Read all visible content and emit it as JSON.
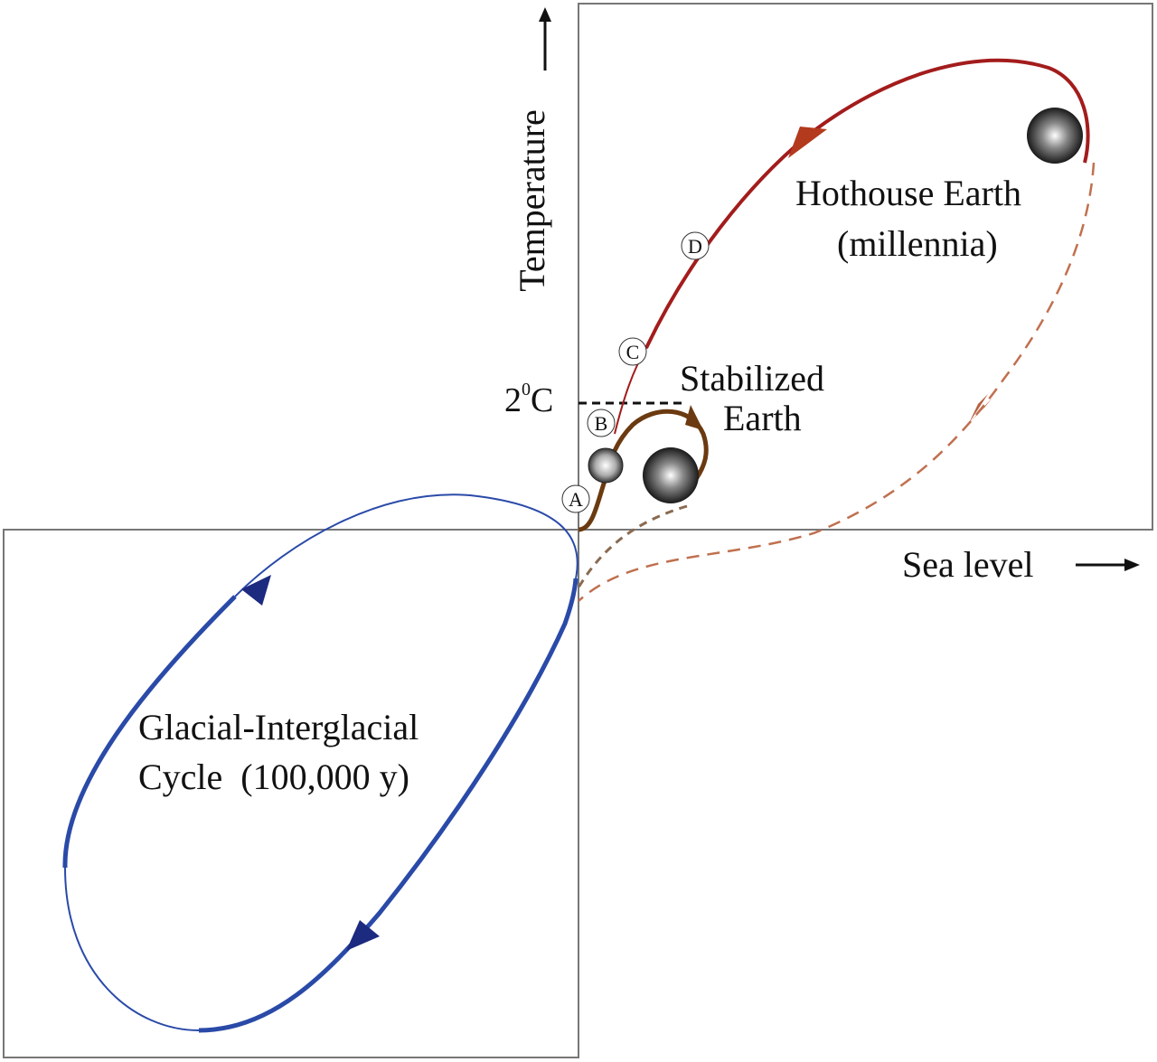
{
  "axes": {
    "y_label": "Temperature",
    "x_label": "Sea level",
    "threshold_label": "2",
    "threshold_sup": "0",
    "threshold_unit": "C"
  },
  "regions": {
    "glacial_line1": "Glacial-Interglacial",
    "glacial_line2": "Cycle  (100,000 y)",
    "hothouse_line1": "Hothouse Earth",
    "hothouse_line2": "(millennia)",
    "stabilized_line1": "Stabilized",
    "stabilized_line2": "Earth"
  },
  "markers": [
    "A",
    "B",
    "C",
    "D"
  ],
  "colors": {
    "glacial": "#2a4aa8",
    "glacial_arrow": "#1c2a80",
    "hothouse": "#a31c1c",
    "hothouse_dashed": "#c0704f",
    "stabilized": "#6b3a10",
    "stabilized_dashed": "#8a6a50",
    "box": "#777777"
  }
}
